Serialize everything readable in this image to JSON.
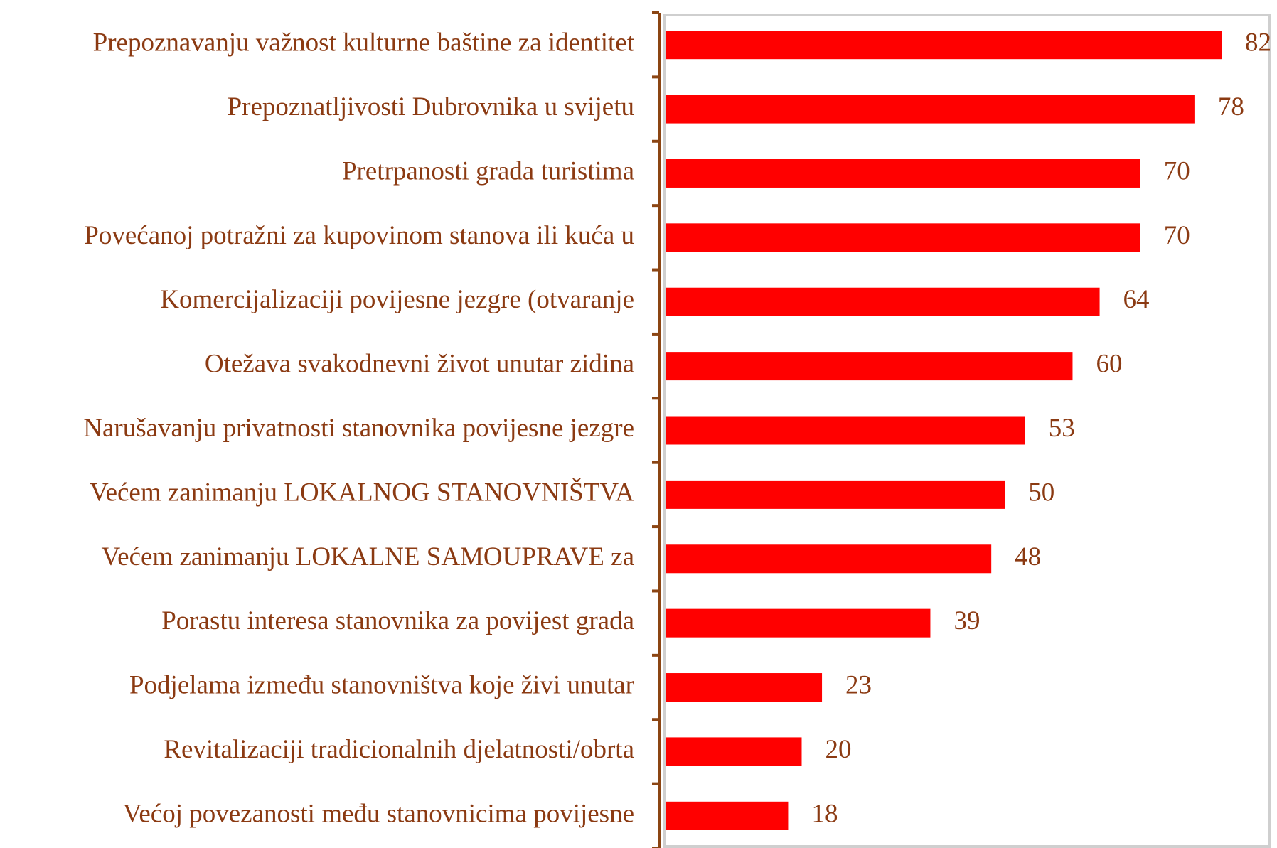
{
  "chart_data": {
    "type": "bar",
    "orientation": "horizontal",
    "categories": [
      "Prepoznavanju važnost kulturne baštine za identitet",
      "Prepoznatljivosti Dubrovnika u svijetu",
      "Pretrpanosti grada turistima",
      "Povećanoj potražni za kupovinom stanova ili kuća u",
      "Komercijalizaciji povijesne jezgre (otvaranje",
      "Otežava svakodnevni život unutar zidina",
      "Narušavanju privatnosti stanovnika povijesne jezgre",
      "Većem zanimanju LOKALNOG STANOVNIŠTVA",
      "Većem zanimanju LOKALNE SAMOUPRAVE za",
      "Porastu interesa stanovnika za povijest grada",
      "Podjelama između stanovništva koje živi unutar",
      "Revitalizaciji tradicionalnih djelatnosti/obrta",
      "Većoj povezanosti među stanovnicima povijesne"
    ],
    "values": [
      82,
      78,
      70,
      70,
      64,
      60,
      53,
      50,
      48,
      39,
      23,
      20,
      18
    ],
    "color": "#ff0000"
  }
}
